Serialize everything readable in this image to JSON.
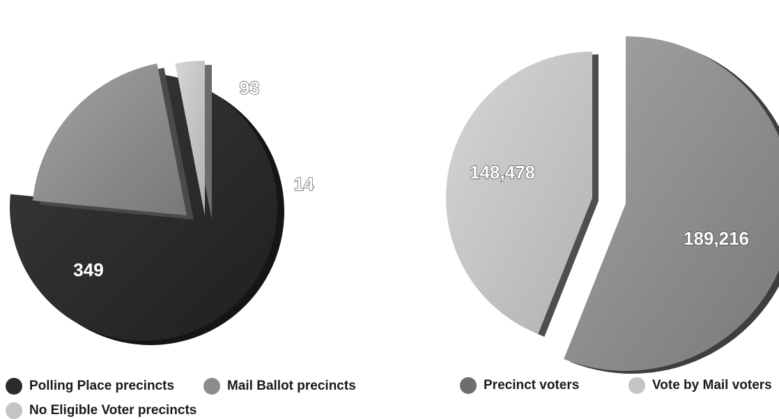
{
  "chart_data": [
    {
      "type": "pie",
      "title": "",
      "series": [
        {
          "name": "Polling Place precincts",
          "value": 349,
          "label": "349",
          "color": "#2b2b2b"
        },
        {
          "name": "Mail Ballot precincts",
          "value": 93,
          "label": "93",
          "color": "#8c8c8c"
        },
        {
          "name": "No Eligible Voter precincts",
          "value": 14,
          "label": "14",
          "color": "#c4c4c4"
        }
      ],
      "legend_position": "bottom-left",
      "exploded": true
    },
    {
      "type": "pie",
      "title": "",
      "series": [
        {
          "name": "Precinct voters",
          "value": 189216,
          "label": "189,216",
          "color": "#858585"
        },
        {
          "name": "Vote by Mail voters",
          "value": 148478,
          "label": "148,478",
          "color": "#c4c4c4"
        }
      ],
      "legend_position": "bottom-right",
      "exploded": true
    }
  ]
}
